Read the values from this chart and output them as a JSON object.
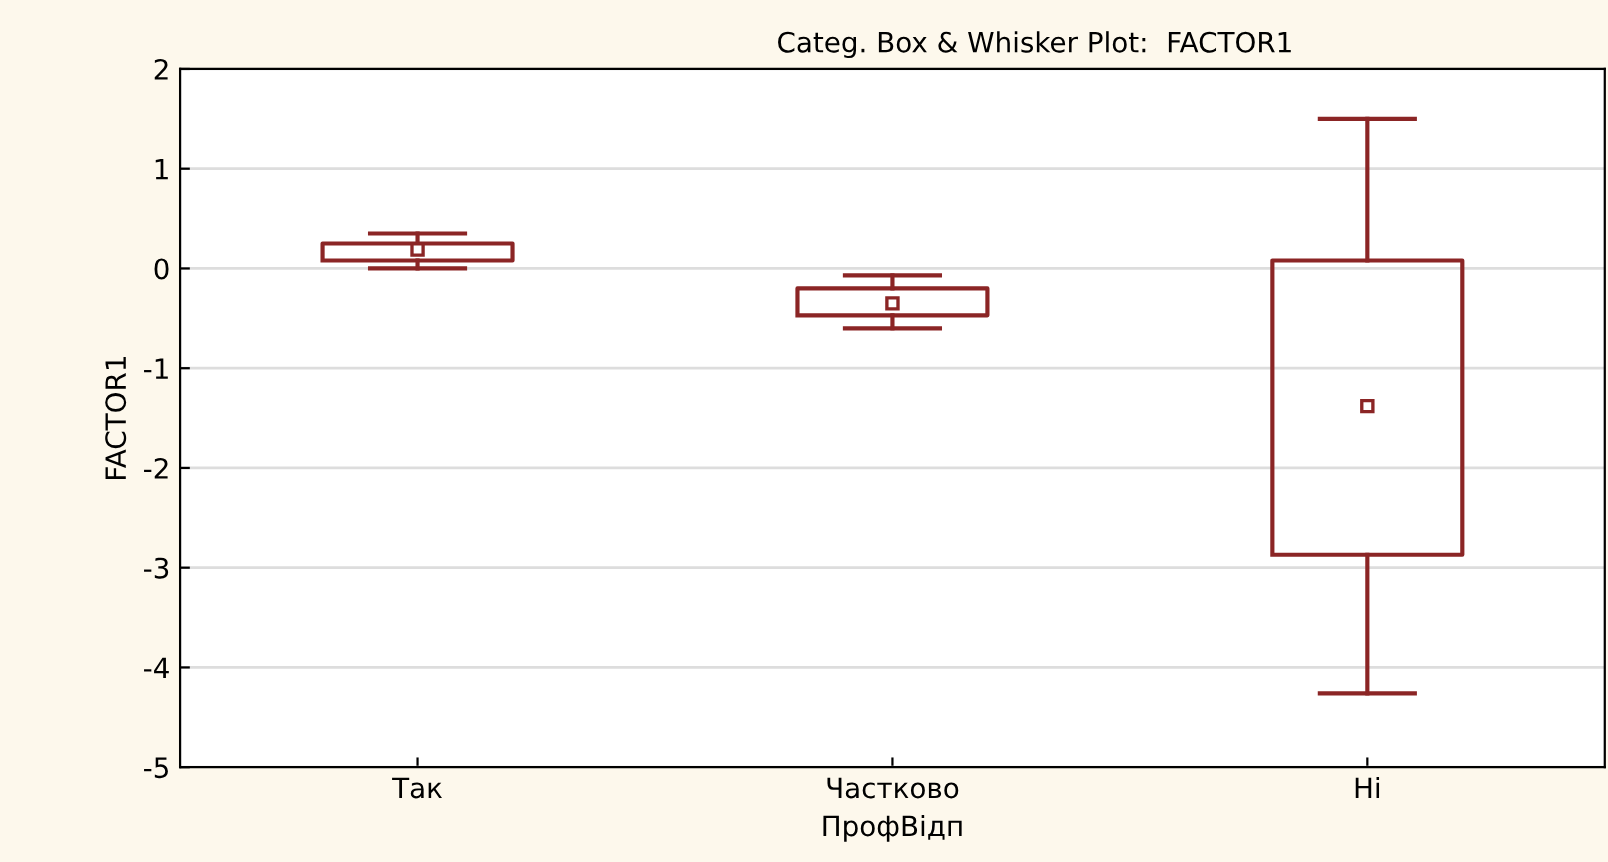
{
  "chart_data": {
    "type": "box",
    "title": "Categ. Box & Whisker Plot:  FACTOR1",
    "xlabel": "ПрофВідп",
    "ylabel": "FACTOR1",
    "categories": [
      "Так",
      "Частково",
      "Hi"
    ],
    "series": [
      {
        "color": "#8b2525",
        "boxes": [
          {
            "low": 0.0,
            "q1": 0.08,
            "median": 0.19,
            "q3": 0.25,
            "high": 0.35
          },
          {
            "low": -0.6,
            "q1": -0.47,
            "median": -0.35,
            "q3": -0.2,
            "high": -0.07
          },
          {
            "low": -4.26,
            "q1": -2.87,
            "median": -1.38,
            "q3": 0.08,
            "high": 1.5
          }
        ]
      }
    ],
    "ylim": [
      -5,
      2
    ],
    "yticks": [
      -5,
      -4,
      -3,
      -2,
      -1,
      0,
      1,
      2
    ],
    "grid": "y"
  }
}
